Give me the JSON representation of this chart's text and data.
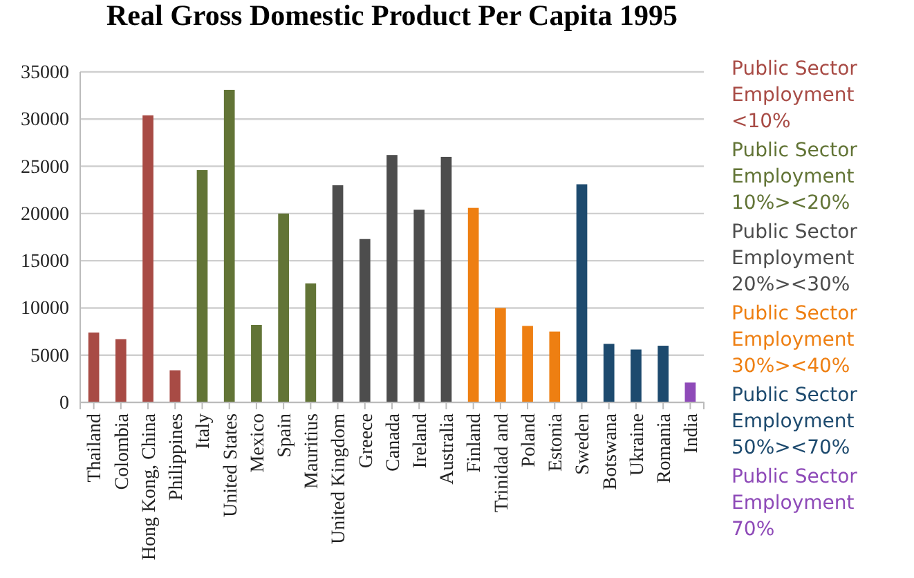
{
  "chart_data": {
    "type": "bar",
    "title": "Real Gross Domestic Product Per Capita 1995",
    "categories": [
      "Thailand",
      "Colombia",
      "Hong Kong, China",
      "Philippines",
      "Italy",
      "United States",
      "Mexico",
      "Spain",
      "Mauritius",
      "United Kingdom",
      "Greece",
      "Canada",
      "Ireland",
      "Australia",
      "Finland",
      "Trinidad and",
      "Poland",
      "Estonia",
      "Sweden",
      "Botswana",
      "Ukraine",
      "Romania",
      "India"
    ],
    "series": [
      {
        "name": "Public Sector Employment <10%",
        "color": "#a84b45",
        "values": [
          7400,
          6700,
          30400,
          3400,
          null,
          null,
          null,
          null,
          null,
          null,
          null,
          null,
          null,
          null,
          null,
          null,
          null,
          null,
          null,
          null,
          null,
          null,
          null
        ]
      },
      {
        "name": "Public Sector Employment 10%><20%",
        "color": "#627436",
        "values": [
          null,
          null,
          null,
          null,
          24600,
          33100,
          8200,
          20000,
          12600,
          null,
          null,
          null,
          null,
          null,
          null,
          null,
          null,
          null,
          null,
          null,
          null,
          null,
          null
        ]
      },
      {
        "name": "Public Sector Employment 20%><30%",
        "color": "#4d4d4d",
        "values": [
          null,
          null,
          null,
          null,
          null,
          null,
          null,
          null,
          null,
          23000,
          17300,
          26200,
          20400,
          26000,
          null,
          null,
          null,
          null,
          null,
          null,
          null,
          null,
          null
        ]
      },
      {
        "name": "Public Sector Employment 30%><40%",
        "color": "#ee7f12",
        "values": [
          null,
          null,
          null,
          null,
          null,
          null,
          null,
          null,
          null,
          null,
          null,
          null,
          null,
          null,
          20600,
          10000,
          8100,
          7500,
          null,
          null,
          null,
          null,
          null
        ]
      },
      {
        "name": "Public Sector Employment 50%><70%",
        "color": "#1d4a6e",
        "values": [
          null,
          null,
          null,
          null,
          null,
          null,
          null,
          null,
          null,
          null,
          null,
          null,
          null,
          null,
          null,
          null,
          null,
          null,
          23100,
          6200,
          5600,
          6000,
          null
        ]
      },
      {
        "name": "Public Sector Employment 70%",
        "color": "#8e4ab8",
        "values": [
          null,
          null,
          null,
          null,
          null,
          null,
          null,
          null,
          null,
          null,
          null,
          null,
          null,
          null,
          null,
          null,
          null,
          null,
          null,
          null,
          null,
          null,
          2100
        ]
      }
    ],
    "ylim": [
      0,
      35000
    ],
    "yticks": [
      0,
      5000,
      10000,
      15000,
      20000,
      25000,
      30000,
      35000
    ],
    "grid": "y",
    "legend": "right"
  }
}
